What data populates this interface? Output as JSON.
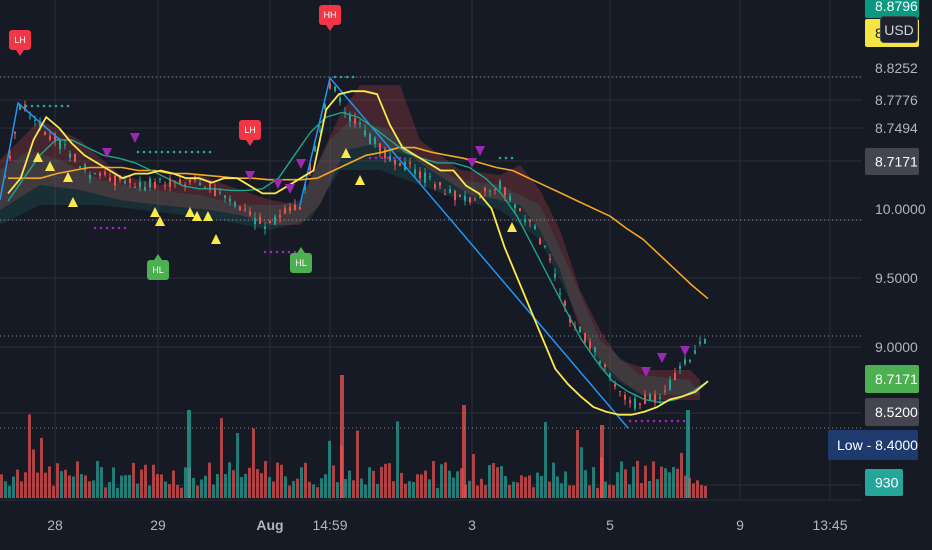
{
  "currency": "USD",
  "price_axis_labels": [
    {
      "text": "8.8252",
      "color": "#b2b5be"
    },
    {
      "text": "8.7776",
      "color": "#b2b5be"
    },
    {
      "text": "8.7494",
      "color": "#b2b5be"
    },
    {
      "text": "10.0000",
      "color": "#b2b5be"
    },
    {
      "text": "9.5000",
      "color": "#b2b5be"
    },
    {
      "text": "9.0000",
      "color": "#b2b5be"
    }
  ],
  "price_tags": [
    {
      "text": "8.8796",
      "bg": "#089981",
      "fg": "#ffffff"
    },
    {
      "text": "8",
      "bg": "#f5e543",
      "fg": "#131722"
    },
    {
      "text": "8.7171",
      "bg": "#434651",
      "fg": "#ffffff"
    },
    {
      "text": "8.7171",
      "bg": "#4caf50",
      "fg": "#ffffff"
    },
    {
      "text": "8.5200",
      "bg": "#434651",
      "fg": "#ffffff"
    },
    {
      "text": "Low  - 8.4000",
      "bg": "#1e3a6e",
      "fg": "#ffffff"
    },
    {
      "text": "930",
      "bg": "#26a69a",
      "fg": "#ffffff"
    }
  ],
  "x_axis_labels": [
    {
      "text": "28",
      "bold": false
    },
    {
      "text": "29",
      "bold": false
    },
    {
      "text": "Aug",
      "bold": true
    },
    {
      "text": "14:59",
      "bold": false
    },
    {
      "text": "3",
      "bold": false
    },
    {
      "text": "5",
      "bold": false
    },
    {
      "text": "9",
      "bold": false
    },
    {
      "text": "13:45",
      "bold": false
    }
  ],
  "pivot_labels": [
    {
      "text": "LH",
      "type": "high",
      "color": "#f23645"
    },
    {
      "text": "HH",
      "type": "high",
      "color": "#f23645"
    },
    {
      "text": "LH",
      "type": "high",
      "color": "#f23645"
    },
    {
      "text": "HL",
      "type": "low",
      "color": "#4caf50"
    },
    {
      "text": "HL",
      "type": "low",
      "color": "#4caf50"
    }
  ],
  "colors": {
    "background": "#161a25",
    "grid": "#2a2e39",
    "up": "#26a69a",
    "down": "#ef5350",
    "ma_fast": "#fbe94c",
    "ma_slow": "#f5a623",
    "ma_mid": "#1fa58c",
    "zigzag": "#2196f3",
    "buy_marker": "#fbe94c",
    "sell_marker": "#9c27b0"
  },
  "chart_data": {
    "type": "line",
    "series": [
      {
        "values": [
          9.95,
          10.05,
          10.3,
          10.45,
          10.38,
          10.28,
          10.2,
          10.15,
          10.1,
          10.05,
          10.08,
          10.08,
          10.1,
          10.08,
          10.05,
          10.05,
          10.02,
          10.05,
          10.05,
          10.0,
          9.95,
          9.95,
          10.0,
          10.05,
          10.1,
          10.5,
          10.6,
          10.62,
          10.62,
          10.6,
          10.4,
          10.25,
          10.2,
          10.15,
          10.1,
          10.1,
          10.0,
          9.95,
          9.85,
          9.6,
          9.4,
          9.2,
          9.0,
          8.8,
          8.7,
          8.62,
          8.55,
          8.52,
          8.5,
          8.5,
          8.52,
          8.55,
          8.6,
          8.62,
          8.65,
          8.72
        ]
      },
      {
        "values": [
          10.05,
          10.05,
          10.05,
          10.08,
          10.1,
          10.12,
          10.12,
          10.12,
          10.1,
          10.1,
          10.08,
          10.08,
          10.07,
          10.06,
          10.05,
          10.05,
          10.04,
          10.04,
          10.04,
          10.05,
          10.1,
          10.15,
          10.2,
          10.22,
          10.25,
          10.25,
          10.22,
          10.2,
          10.18,
          10.15,
          10.12,
          10.1,
          10.05,
          10.0,
          9.95,
          9.9,
          9.85,
          9.8,
          9.72,
          9.65,
          9.55,
          9.45,
          9.35,
          9.26
        ]
      },
      {
        "values": [
          9.9,
          10.05,
          10.2,
          10.3,
          10.3,
          10.25,
          10.2,
          10.18,
          10.15,
          10.1,
          10.05,
          10.0,
          9.98,
          9.98,
          9.97,
          9.97,
          9.98,
          10.05,
          10.2,
          10.35,
          10.45,
          10.48,
          10.45,
          10.38,
          10.3,
          10.22,
          10.18,
          10.15,
          10.15,
          10.12,
          10.05,
          9.95,
          9.8,
          9.6,
          9.4,
          9.2,
          9.0,
          8.85,
          8.72,
          8.65,
          8.6,
          8.58,
          8.6,
          8.65,
          8.72
        ]
      }
    ],
    "ylabel": "USD"
  }
}
